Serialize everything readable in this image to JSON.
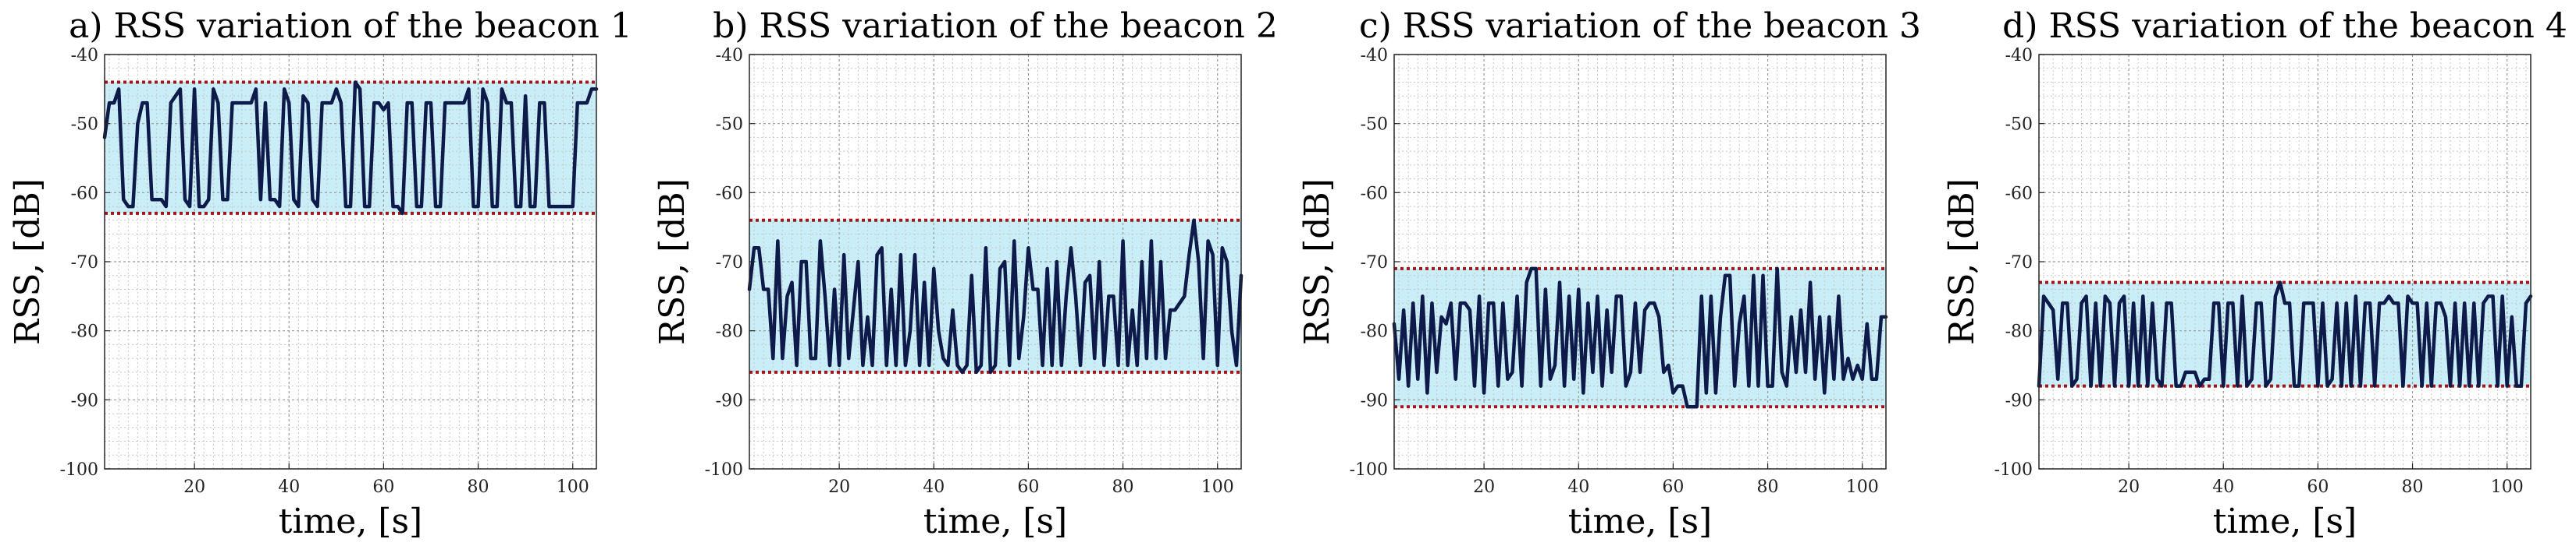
{
  "chart_data": [
    {
      "type": "line",
      "title": "a) RSS variation of the beacon 1",
      "xlabel": "time, [s]",
      "ylabel": "RSS, [dB]",
      "xlim": [
        1,
        105
      ],
      "ylim": [
        -100,
        -40
      ],
      "xticks": [
        20,
        40,
        60,
        80,
        100
      ],
      "yticks": [
        -40,
        -50,
        -60,
        -70,
        -80,
        -90,
        -100
      ],
      "grid": true,
      "band": [
        -63,
        -44
      ],
      "line_color": "#0d1a4a",
      "band_color": "#c9eef8",
      "bound_color": "#a0161a",
      "series": [
        {
          "x": [
            1,
            2,
            3,
            4,
            5,
            6,
            7,
            8,
            9,
            10,
            11,
            12,
            13,
            14,
            15,
            16,
            17,
            18,
            19,
            20,
            21,
            22,
            23,
            24,
            25,
            26,
            27,
            28,
            29,
            30,
            31,
            32,
            33,
            34,
            35,
            36,
            37,
            38,
            39,
            40,
            41,
            42,
            43,
            44,
            45,
            46,
            47,
            48,
            49,
            50,
            51,
            52,
            53,
            54,
            55,
            56,
            57,
            58,
            59,
            60,
            61,
            62,
            63,
            64,
            65,
            66,
            67,
            68,
            69,
            70,
            71,
            72,
            73,
            74,
            75,
            76,
            77,
            78,
            79,
            80,
            81,
            82,
            83,
            84,
            85,
            86,
            87,
            88,
            89,
            90,
            91,
            92,
            93,
            94,
            95,
            96,
            97,
            98,
            99,
            100,
            101,
            102,
            103,
            104,
            105
          ],
          "values": [
            -52,
            -47,
            -47,
            -45,
            -61,
            -62,
            -62,
            -50,
            -47,
            -47,
            -61,
            -61,
            -61,
            -62,
            -47,
            -46,
            -45,
            -61,
            -62,
            -45,
            -62,
            -62,
            -61,
            -45,
            -47,
            -61,
            -61,
            -47,
            -47,
            -47,
            -47,
            -47,
            -45,
            -61,
            -47,
            -61,
            -61,
            -62,
            -45,
            -47,
            -61,
            -62,
            -46,
            -47,
            -61,
            -62,
            -47,
            -47,
            -47,
            -45,
            -47,
            -62,
            -62,
            -44,
            -45,
            -62,
            -62,
            -47,
            -47,
            -48,
            -47,
            -62,
            -62,
            -63,
            -47,
            -47,
            -62,
            -62,
            -47,
            -47,
            -62,
            -62,
            -47,
            -47,
            -47,
            -47,
            -47,
            -45,
            -62,
            -62,
            -45,
            -47,
            -62,
            -62,
            -45,
            -47,
            -47,
            -62,
            -62,
            -46,
            -62,
            -62,
            -47,
            -47,
            -62,
            -62,
            -62,
            -62,
            -62,
            -62,
            -47,
            -47,
            -47,
            -45,
            -45
          ]
        }
      ]
    },
    {
      "type": "line",
      "title": "b) RSS variation of the beacon 2",
      "xlabel": "time, [s]",
      "ylabel": "RSS, [dB]",
      "xlim": [
        1,
        105
      ],
      "ylim": [
        -100,
        -40
      ],
      "xticks": [
        20,
        40,
        60,
        80,
        100
      ],
      "yticks": [
        -40,
        -50,
        -60,
        -70,
        -80,
        -90,
        -100
      ],
      "grid": true,
      "band": [
        -86,
        -64
      ],
      "line_color": "#0d1a4a",
      "band_color": "#c9eef8",
      "bound_color": "#a0161a",
      "series": [
        {
          "x": [
            1,
            2,
            3,
            4,
            5,
            6,
            7,
            8,
            9,
            10,
            11,
            12,
            13,
            14,
            15,
            16,
            17,
            18,
            19,
            20,
            21,
            22,
            23,
            24,
            25,
            26,
            27,
            28,
            29,
            30,
            31,
            32,
            33,
            34,
            35,
            36,
            37,
            38,
            39,
            40,
            41,
            42,
            43,
            44,
            45,
            46,
            47,
            48,
            49,
            50,
            51,
            52,
            53,
            54,
            55,
            56,
            57,
            58,
            59,
            60,
            61,
            62,
            63,
            64,
            65,
            66,
            67,
            68,
            69,
            70,
            71,
            72,
            73,
            74,
            75,
            76,
            77,
            78,
            79,
            80,
            81,
            82,
            83,
            84,
            85,
            86,
            87,
            88,
            89,
            90,
            91,
            92,
            93,
            94,
            95,
            96,
            97,
            98,
            99,
            100,
            101,
            102,
            103,
            104,
            105
          ],
          "values": [
            -74,
            -68,
            -68,
            -74,
            -74,
            -84,
            -67,
            -84,
            -75,
            -73,
            -85,
            -70,
            -70,
            -84,
            -84,
            -67,
            -75,
            -85,
            -74,
            -85,
            -69,
            -84,
            -77,
            -70,
            -85,
            -78,
            -85,
            -69,
            -68,
            -85,
            -74,
            -85,
            -69,
            -85,
            -80,
            -69,
            -85,
            -73,
            -85,
            -71,
            -80,
            -84,
            -85,
            -77,
            -85,
            -86,
            -85,
            -72,
            -86,
            -85,
            -68,
            -86,
            -85,
            -71,
            -70,
            -85,
            -67,
            -84,
            -78,
            -68,
            -74,
            -74,
            -85,
            -71,
            -85,
            -70,
            -85,
            -75,
            -68,
            -75,
            -85,
            -73,
            -72,
            -84,
            -70,
            -85,
            -75,
            -75,
            -85,
            -67,
            -85,
            -77,
            -85,
            -70,
            -84,
            -67,
            -84,
            -70,
            -84,
            -77,
            -77,
            -76,
            -75,
            -69,
            -64,
            -70,
            -84,
            -67,
            -69,
            -85,
            -68,
            -70,
            -80,
            -85,
            -72
          ]
        }
      ]
    },
    {
      "type": "line",
      "title": "c) RSS variation of the beacon 3",
      "xlabel": "time, [s]",
      "ylabel": "RSS, [dB]",
      "xlim": [
        1,
        105
      ],
      "ylim": [
        -100,
        -40
      ],
      "xticks": [
        20,
        40,
        60,
        80,
        100
      ],
      "yticks": [
        -40,
        -50,
        -60,
        -70,
        -80,
        -90,
        -100
      ],
      "grid": true,
      "band": [
        -91,
        -71
      ],
      "line_color": "#0d1a4a",
      "band_color": "#c9eef8",
      "bound_color": "#a0161a",
      "series": [
        {
          "x": [
            1,
            2,
            3,
            4,
            5,
            6,
            7,
            8,
            9,
            10,
            11,
            12,
            13,
            14,
            15,
            16,
            17,
            18,
            19,
            20,
            21,
            22,
            23,
            24,
            25,
            26,
            27,
            28,
            29,
            30,
            31,
            32,
            33,
            34,
            35,
            36,
            37,
            38,
            39,
            40,
            41,
            42,
            43,
            44,
            45,
            46,
            47,
            48,
            49,
            50,
            51,
            52,
            53,
            54,
            55,
            56,
            57,
            58,
            59,
            60,
            61,
            62,
            63,
            64,
            65,
            66,
            67,
            68,
            69,
            70,
            71,
            72,
            73,
            74,
            75,
            76,
            77,
            78,
            79,
            80,
            81,
            82,
            83,
            84,
            85,
            86,
            87,
            88,
            89,
            90,
            91,
            92,
            93,
            94,
            95,
            96,
            97,
            98,
            99,
            100,
            101,
            102,
            103,
            104,
            105
          ],
          "values": [
            -79,
            -87,
            -77,
            -88,
            -76,
            -87,
            -75,
            -89,
            -76,
            -86,
            -78,
            -79,
            -76,
            -87,
            -76,
            -76,
            -77,
            -88,
            -75,
            -89,
            -76,
            -76,
            -88,
            -76,
            -87,
            -86,
            -75,
            -88,
            -73,
            -71,
            -71,
            -88,
            -74,
            -87,
            -85,
            -73,
            -88,
            -75,
            -87,
            -74,
            -89,
            -76,
            -86,
            -75,
            -88,
            -77,
            -86,
            -75,
            -75,
            -88,
            -86,
            -76,
            -86,
            -77,
            -76,
            -76,
            -78,
            -86,
            -85,
            -89,
            -88,
            -88,
            -91,
            -91,
            -91,
            -75,
            -89,
            -75,
            -89,
            -78,
            -72,
            -72,
            -88,
            -79,
            -75,
            -88,
            -72,
            -88,
            -72,
            -88,
            -88,
            -71,
            -86,
            -88,
            -78,
            -86,
            -77,
            -86,
            -73,
            -87,
            -78,
            -89,
            -78,
            -87,
            -75,
            -87,
            -84,
            -87,
            -85,
            -87,
            -79,
            -87,
            -87,
            -78,
            -78
          ]
        }
      ]
    },
    {
      "type": "line",
      "title": "d) RSS variation of the beacon 4",
      "xlabel": "time, [s]",
      "ylabel": "RSS, [dB]",
      "xlim": [
        1,
        105
      ],
      "ylim": [
        -100,
        -40
      ],
      "xticks": [
        20,
        40,
        60,
        80,
        100
      ],
      "yticks": [
        -40,
        -50,
        -60,
        -70,
        -80,
        -90,
        -100
      ],
      "grid": true,
      "band": [
        -88,
        -73
      ],
      "line_color": "#0d1a4a",
      "band_color": "#c9eef8",
      "bound_color": "#a0161a",
      "series": [
        {
          "x": [
            1,
            2,
            3,
            4,
            5,
            6,
            7,
            8,
            9,
            10,
            11,
            12,
            13,
            14,
            15,
            16,
            17,
            18,
            19,
            20,
            21,
            22,
            23,
            24,
            25,
            26,
            27,
            28,
            29,
            30,
            31,
            32,
            33,
            34,
            35,
            36,
            37,
            38,
            39,
            40,
            41,
            42,
            43,
            44,
            45,
            46,
            47,
            48,
            49,
            50,
            51,
            52,
            53,
            54,
            55,
            56,
            57,
            58,
            59,
            60,
            61,
            62,
            63,
            64,
            65,
            66,
            67,
            68,
            69,
            70,
            71,
            72,
            73,
            74,
            75,
            76,
            77,
            78,
            79,
            80,
            81,
            82,
            83,
            84,
            85,
            86,
            87,
            88,
            89,
            90,
            91,
            92,
            93,
            94,
            95,
            96,
            97,
            98,
            99,
            100,
            101,
            102,
            103,
            104,
            105
          ],
          "values": [
            -88,
            -75,
            -76,
            -77,
            -87,
            -76,
            -76,
            -88,
            -87,
            -76,
            -75,
            -88,
            -76,
            -88,
            -75,
            -76,
            -88,
            -76,
            -75,
            -88,
            -76,
            -88,
            -75,
            -88,
            -76,
            -87,
            -88,
            -76,
            -76,
            -88,
            -88,
            -86,
            -86,
            -86,
            -88,
            -87,
            -87,
            -76,
            -76,
            -88,
            -76,
            -76,
            -88,
            -75,
            -88,
            -87,
            -76,
            -76,
            -88,
            -87,
            -75,
            -73,
            -76,
            -76,
            -88,
            -88,
            -76,
            -76,
            -76,
            -88,
            -76,
            -88,
            -87,
            -76,
            -88,
            -76,
            -88,
            -75,
            -88,
            -76,
            -76,
            -88,
            -76,
            -76,
            -75,
            -76,
            -76,
            -88,
            -75,
            -76,
            -76,
            -88,
            -76,
            -88,
            -76,
            -76,
            -78,
            -88,
            -76,
            -88,
            -76,
            -88,
            -76,
            -88,
            -76,
            -75,
            -75,
            -88,
            -75,
            -88,
            -78,
            -88,
            -88,
            -76,
            -75
          ]
        }
      ]
    }
  ]
}
